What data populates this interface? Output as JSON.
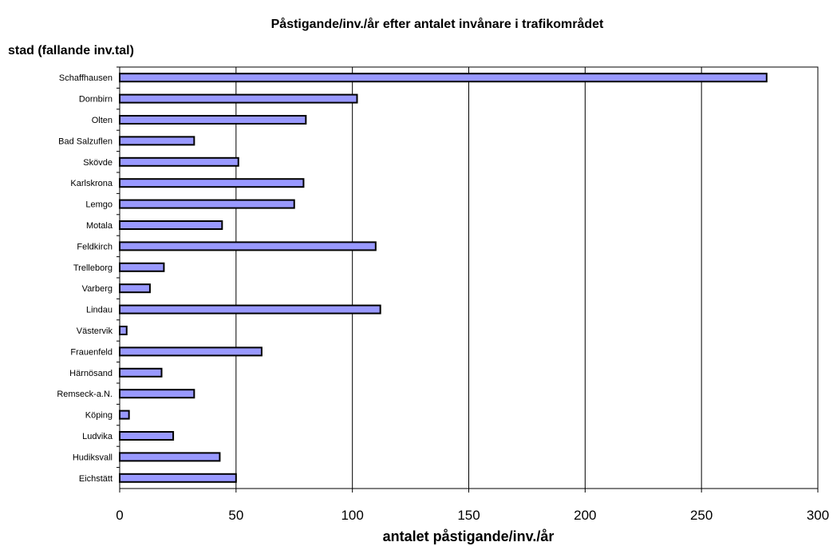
{
  "chart_data": {
    "type": "bar",
    "orientation": "horizontal",
    "title": "Påstigande/inv./år efter antalet invånare i trafikområdet",
    "ylabel": "stad (fallande inv.tal)",
    "xlabel": "antalet påstigande/inv./år",
    "xlim": [
      0,
      300
    ],
    "xticks": [
      "0",
      "50",
      "100",
      "150",
      "200",
      "250",
      "300"
    ],
    "grid": "vertical",
    "bar_color": "#9999ff",
    "categories": [
      "Schaffhausen",
      "Dornbirn",
      "Olten",
      "Bad Salzuflen",
      "Skövde",
      "Karlskrona",
      "Lemgo",
      "Motala",
      "Feldkirch",
      "Trelleborg",
      "Varberg",
      "Lindau",
      "Västervik",
      "Frauenfeld",
      "Härnösand",
      "Remseck-a.N.",
      "Köping",
      "Ludvika",
      "Hudiksvall",
      "Eichstätt"
    ],
    "values": [
      278,
      102,
      80,
      32,
      51,
      79,
      75,
      44,
      110,
      19,
      13,
      112,
      3,
      61,
      18,
      32,
      4,
      23,
      43,
      50
    ]
  }
}
